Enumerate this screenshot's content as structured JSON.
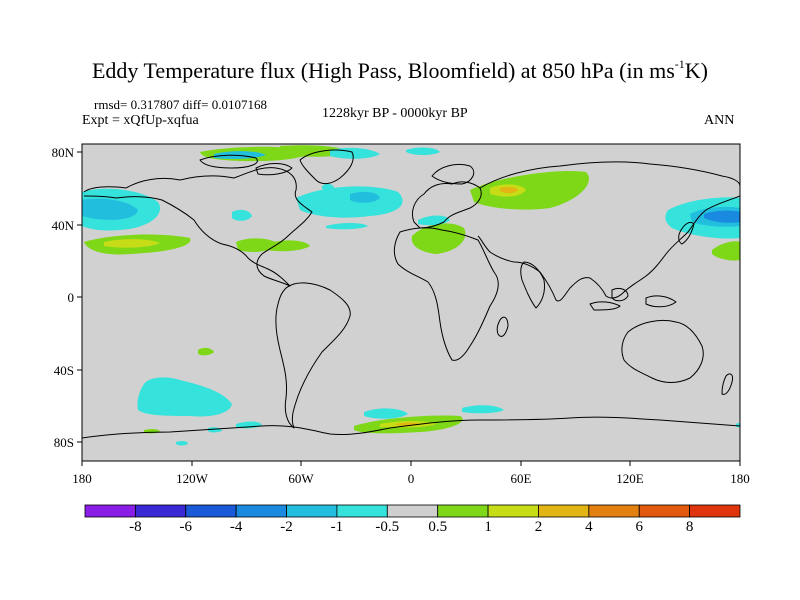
{
  "title": {
    "main": "Eddy Temperature flux (High Pass, Bloomfield) at 850 hPa (in ms",
    "sup": "-1",
    "end": "K)"
  },
  "stats": {
    "rmsd": "rmsd= 0.317807 diff= 0.0107168",
    "expt": "Expt = xQfUp-xqfua"
  },
  "period": "1228kyr BP - 0000kyr BP",
  "season": "ANN",
  "axes": {
    "x_labels": [
      "180",
      "120W",
      "60W",
      "0",
      "60E",
      "120E",
      "180"
    ],
    "y_labels": [
      "80N",
      "40N",
      "0",
      "40S",
      "80S"
    ]
  },
  "colorbar": {
    "labels": [
      "-8",
      "-6",
      "-4",
      "-2",
      "-1",
      "-0.5",
      "0.5",
      "1",
      "2",
      "4",
      "6",
      "8"
    ],
    "colors": [
      "#8a1ee6",
      "#3a2ad6",
      "#1a5ad8",
      "#1a8ae0",
      "#22bede",
      "#36e2dc",
      "#cfcfcf",
      "#7ed818",
      "#c6dc16",
      "#e2b414",
      "#e28010",
      "#e25a0e",
      "#e0340c"
    ]
  },
  "palette": {
    "ocean_land_bg": "#d1d1d1",
    "coast": "#000000"
  }
}
